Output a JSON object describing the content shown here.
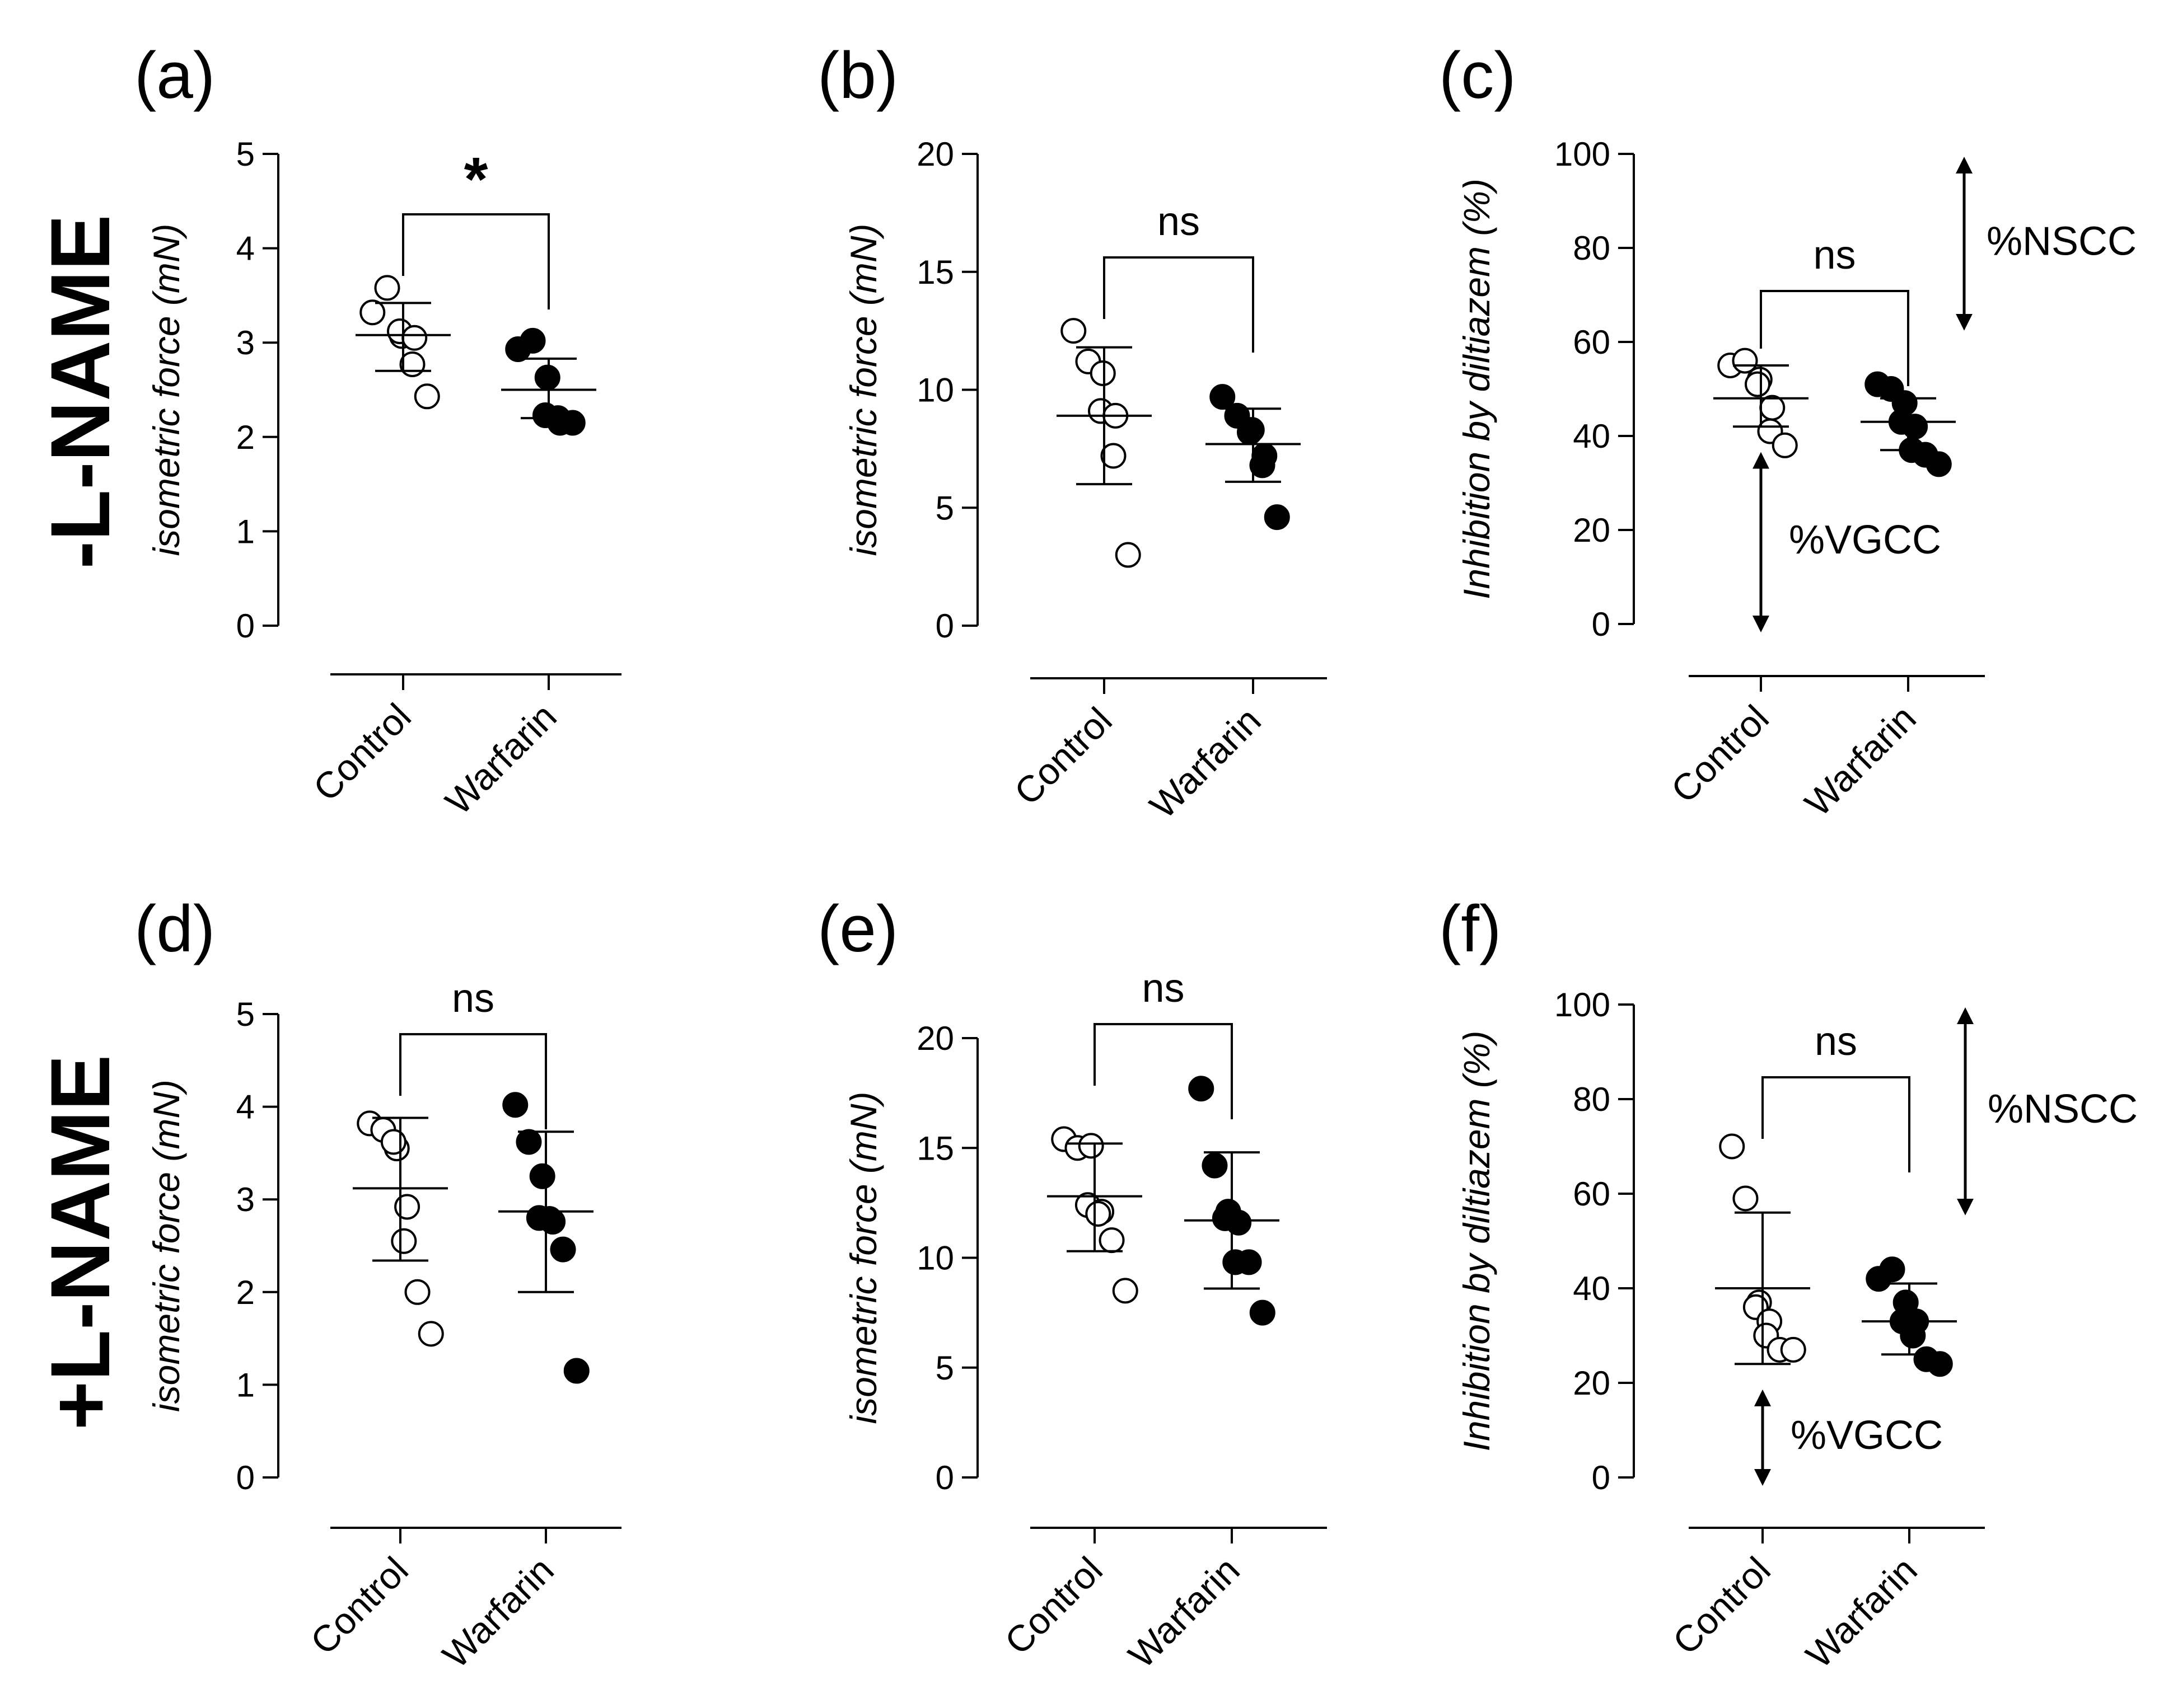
{
  "row_labels": [
    "-L-NAME",
    "+L-NAME"
  ],
  "chart_data": [
    {
      "id": "a",
      "panel_label": "(a)",
      "type": "scatter",
      "ylabel": "isometric force (mN)",
      "ylim": [
        0,
        5
      ],
      "yticks": [
        0,
        1,
        2,
        3,
        4,
        5
      ],
      "categories": [
        "Control",
        "Warfarin"
      ],
      "series": [
        {
          "name": "Control",
          "filled": false,
          "values": [
            3.32,
            3.58,
            3.07,
            3.12,
            3.05,
            2.77,
            2.43
          ],
          "mean": 3.08,
          "sd_low": 2.7,
          "sd_high": 3.42
        },
        {
          "name": "Warfarin",
          "filled": true,
          "values": [
            2.93,
            3.02,
            2.63,
            2.23,
            2.15,
            2.2,
            2.15
          ],
          "mean": 2.5,
          "sd_low": 2.2,
          "sd_high": 2.83
        }
      ],
      "significance": "*"
    },
    {
      "id": "b",
      "panel_label": "(b)",
      "type": "scatter",
      "ylabel": "isometric force (mN)",
      "ylim": [
        0,
        20
      ],
      "yticks": [
        0,
        5,
        10,
        15,
        20
      ],
      "categories": [
        "Control",
        "Warfarin"
      ],
      "series": [
        {
          "name": "Control",
          "filled": false,
          "values": [
            12.5,
            11.2,
            10.7,
            9.1,
            8.9,
            7.2,
            3.0
          ],
          "mean": 8.9,
          "sd_low": 6.0,
          "sd_high": 11.8
        },
        {
          "name": "Warfarin",
          "filled": true,
          "values": [
            9.7,
            8.9,
            8.3,
            8.2,
            7.2,
            6.8,
            4.6
          ],
          "mean": 7.7,
          "sd_low": 6.1,
          "sd_high": 9.2
        }
      ],
      "significance": "ns"
    },
    {
      "id": "c",
      "panel_label": "(c)",
      "type": "scatter",
      "ylabel": "Inhibition by diltiazem (%)",
      "ylim": [
        0,
        100
      ],
      "yticks": [
        0,
        20,
        40,
        60,
        80,
        100
      ],
      "categories": [
        "Control",
        "Warfarin"
      ],
      "series": [
        {
          "name": "Control",
          "filled": false,
          "values": [
            55,
            56,
            52,
            51,
            46,
            41,
            38
          ],
          "mean": 48,
          "sd_low": 42,
          "sd_high": 55
        },
        {
          "name": "Warfarin",
          "filled": true,
          "values": [
            51,
            50,
            47,
            43,
            42,
            37,
            36,
            34
          ],
          "mean": 43,
          "sd_low": 37,
          "sd_high": 48
        }
      ],
      "significance": "ns",
      "annotations": {
        "upper": "%NSCC",
        "lower": "%VGCC"
      }
    },
    {
      "id": "d",
      "panel_label": "(d)",
      "type": "scatter",
      "ylabel": "isometric force (mN)",
      "ylim": [
        0,
        5
      ],
      "yticks": [
        0,
        1,
        2,
        3,
        4,
        5
      ],
      "categories": [
        "Control",
        "Warfarin"
      ],
      "series": [
        {
          "name": "Control",
          "filled": false,
          "values": [
            3.82,
            3.75,
            3.55,
            3.62,
            2.92,
            2.55,
            2.0,
            1.55
          ],
          "mean": 3.12,
          "sd_low": 2.34,
          "sd_high": 3.88
        },
        {
          "name": "Warfarin",
          "filled": true,
          "values": [
            4.02,
            3.62,
            3.25,
            2.8,
            2.76,
            2.79,
            2.46,
            1.15
          ],
          "mean": 2.87,
          "sd_low": 2.0,
          "sd_high": 3.73
        }
      ],
      "significance": "ns"
    },
    {
      "id": "e",
      "panel_label": "(e)",
      "type": "scatter",
      "ylabel": "isometric force (mN)",
      "ylim": [
        0,
        20
      ],
      "yticks": [
        0,
        5,
        10,
        15,
        20
      ],
      "categories": [
        "Control",
        "Warfarin"
      ],
      "series": [
        {
          "name": "Control",
          "filled": false,
          "values": [
            15.4,
            15.0,
            15.1,
            12.4,
            12.1,
            12.0,
            10.8,
            8.5
          ],
          "mean": 12.8,
          "sd_low": 10.3,
          "sd_high": 15.2
        },
        {
          "name": "Warfarin",
          "filled": true,
          "values": [
            17.7,
            14.2,
            12.1,
            11.8,
            11.6,
            9.8,
            9.8,
            7.5
          ],
          "mean": 11.7,
          "sd_low": 8.6,
          "sd_high": 14.8
        }
      ],
      "significance": "ns"
    },
    {
      "id": "f",
      "panel_label": "(f)",
      "type": "scatter",
      "ylabel": "Inhibition by diltiazem (%)",
      "ylim": [
        0,
        100
      ],
      "yticks": [
        0,
        20,
        40,
        60,
        80,
        100
      ],
      "categories": [
        "Control",
        "Warfarin"
      ],
      "series": [
        {
          "name": "Control",
          "filled": false,
          "values": [
            70,
            59,
            37,
            36,
            33,
            30,
            27,
            27
          ],
          "mean": 40,
          "sd_low": 24,
          "sd_high": 56
        },
        {
          "name": "Warfarin",
          "filled": true,
          "values": [
            42,
            44,
            37,
            33,
            33,
            30,
            25,
            24
          ],
          "mean": 33,
          "sd_low": 26,
          "sd_high": 41
        }
      ],
      "significance": "ns",
      "annotations": {
        "upper": "%NSCC",
        "lower": "%VGCC"
      }
    }
  ]
}
